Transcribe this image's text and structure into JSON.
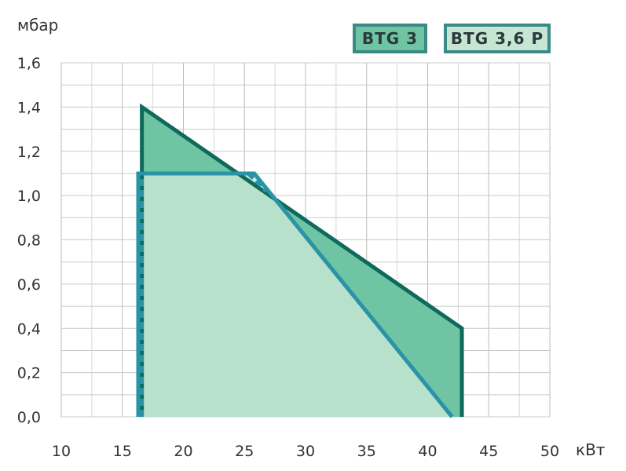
{
  "chart_data": {
    "type": "area",
    "ylabel": "мбар",
    "xlabel": "кВт",
    "xlim": [
      10,
      50
    ],
    "ylim": [
      0,
      1.6
    ],
    "x_ticks": [
      "10",
      "15",
      "20",
      "25",
      "30",
      "35",
      "40",
      "45",
      "50"
    ],
    "y_ticks": [
      "0,0",
      "0,2",
      "0,4",
      "0,6",
      "0,8",
      "1,0",
      "1,2",
      "1,4",
      "1,6"
    ],
    "grid": true,
    "legend_position": "top-right",
    "series": [
      {
        "name": "BTG 3",
        "color": "#0f6a5c",
        "fill": "#6fc4a4",
        "points": [
          [
            16.6,
            0.0
          ],
          [
            16.6,
            1.4
          ],
          [
            42.8,
            0.4
          ],
          [
            42.8,
            0.0
          ]
        ]
      },
      {
        "name": "BTG 3,6 P",
        "color": "#2b93a6",
        "fill": "#c6e6d3",
        "points": [
          [
            16.3,
            0.0
          ],
          [
            16.3,
            1.1
          ],
          [
            25.8,
            1.1
          ],
          [
            42.0,
            0.0
          ]
        ]
      }
    ],
    "annotations": [
      {
        "type": "dashed-line",
        "series": "BTG 3,6 P",
        "points": [
          [
            16.6,
            0.0
          ],
          [
            16.6,
            1.1
          ]
        ]
      },
      {
        "type": "dashed-line",
        "series": "BTG 3,6 P",
        "points": [
          [
            25.3,
            1.1
          ],
          [
            26.8,
            1.02
          ]
        ]
      }
    ]
  }
}
